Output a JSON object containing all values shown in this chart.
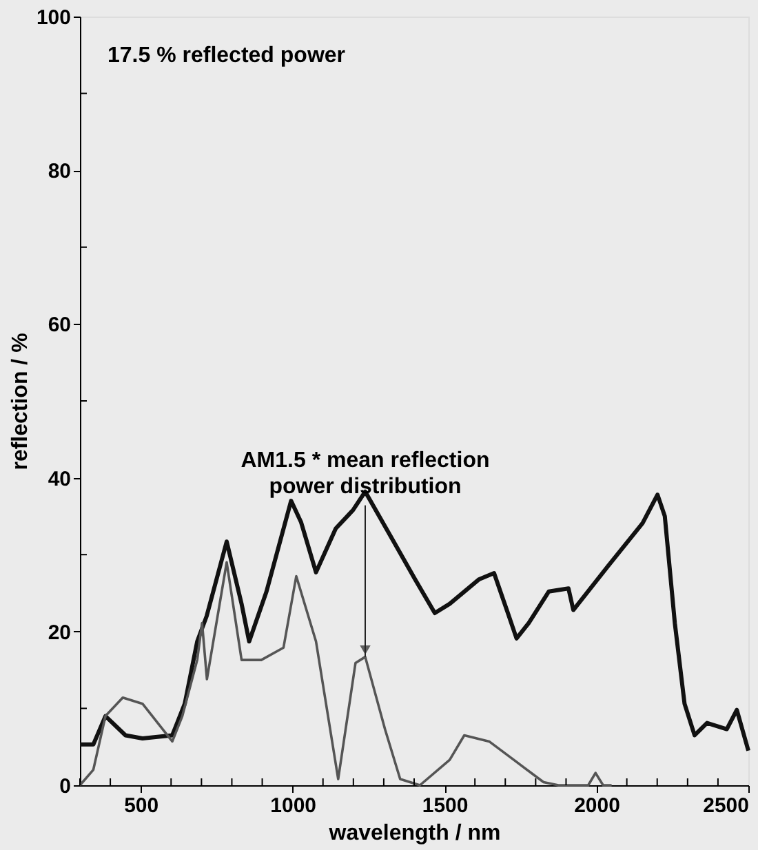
{
  "chart_data": {
    "type": "line",
    "xlabel": "wavelength / nm",
    "ylabel": "reflection / %",
    "xlim": [
      300,
      2500
    ],
    "ylim": [
      0,
      100
    ],
    "xticks": [
      {
        "value": 300,
        "label": null
      },
      {
        "value": 400,
        "label": null
      },
      500,
      {
        "value": 600,
        "label": null
      },
      {
        "value": 700,
        "label": null
      },
      {
        "value": 800,
        "label": null
      },
      {
        "value": 900,
        "label": null
      },
      1000,
      {
        "value": 1100,
        "label": null
      },
      {
        "value": 1200,
        "label": null
      },
      {
        "value": 1300,
        "label": null
      },
      {
        "value": 1400,
        "label": null
      },
      1500,
      {
        "value": 1600,
        "label": null
      },
      {
        "value": 1700,
        "label": null
      },
      {
        "value": 1800,
        "label": null
      },
      {
        "value": 1900,
        "label": null
      },
      2000,
      {
        "value": 2100,
        "label": null
      },
      {
        "value": 2200,
        "label": null
      },
      {
        "value": 2300,
        "label": null
      },
      {
        "value": 2400,
        "label": null
      },
      2500
    ],
    "yticks": [
      0,
      {
        "value": 10,
        "label": null
      },
      20,
      {
        "value": 30,
        "label": null
      },
      40,
      {
        "value": 50,
        "label": null
      },
      60,
      {
        "value": 70,
        "label": null
      },
      80,
      {
        "value": 90,
        "label": null
      },
      100
    ],
    "grid": false,
    "series": [
      {
        "color": "#111111",
        "x": [
          300,
          344,
          384,
          450,
          506,
          604,
          645,
          686,
          717,
          783,
          832,
          857,
          914,
          995,
          1028,
          1077,
          1142,
          1199,
          1239,
          1321,
          1403,
          1468,
          1517,
          1614,
          1663,
          1712,
          1737,
          1777,
          1843,
          1908,
          1924,
          2038,
          2152,
          2201,
          2225,
          2258,
          2290,
          2323,
          2364,
          2429,
          2462,
          2500
        ],
        "values": [
          5.3,
          5.3,
          9.0,
          6.5,
          6.1,
          6.5,
          10.6,
          18.7,
          22,
          31.7,
          23.6,
          18.7,
          25.2,
          37.0,
          34.2,
          27.7,
          33.4,
          35.8,
          38.2,
          32.5,
          26.8,
          22.4,
          23.6,
          26.8,
          27.6,
          22,
          19.1,
          21.1,
          25.2,
          25.6,
          22.8,
          28.5,
          34.1,
          37.8,
          35.0,
          21.1,
          10.6,
          6.5,
          8.1,
          7.3,
          9.8,
          4.5
        ]
      },
      {
        "color": "#555555",
        "x": [
          300,
          344,
          384,
          441,
          506,
          604,
          637,
          686,
          702,
          718,
          783,
          832,
          897,
          970,
          1012,
          1077,
          1150,
          1207,
          1239,
          1304,
          1354,
          1419,
          1517,
          1565,
          1647,
          1728,
          1826,
          1875,
          1973,
          1997,
          2022,
          2050
        ],
        "values": [
          0,
          2,
          9,
          11.4,
          10.6,
          5.7,
          9.0,
          16.3,
          21.1,
          13.8,
          29,
          16.3,
          16.3,
          17.9,
          27.2,
          18.7,
          0.8,
          15.9,
          16.7,
          7.3,
          0.8,
          0,
          3.3,
          6.5,
          5.7,
          3.3,
          0.4,
          0,
          0,
          1.6,
          0,
          0
        ]
      }
    ],
    "annotations": [
      "17.5 % reflected power",
      {
        "text": "AM1.5 * mean reflection power distribution",
        "x": 1239,
        "y": 16.7
      }
    ]
  }
}
